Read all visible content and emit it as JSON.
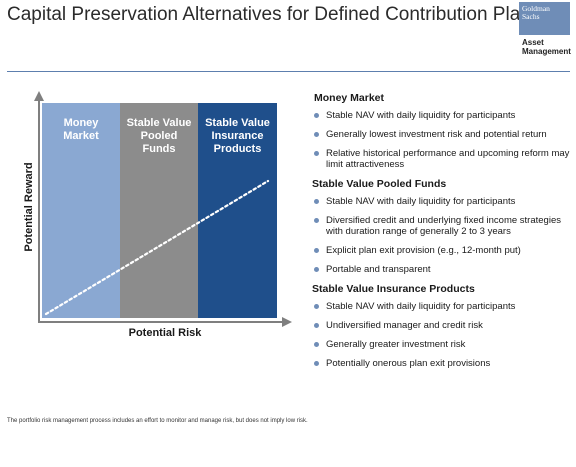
{
  "title": "Capital Preservation Alternatives for Defined Contribution Plans",
  "logo": {
    "line1": "Goldman",
    "line2": "Sachs",
    "sub1": "Asset",
    "sub2": "Management"
  },
  "chart": {
    "bands": [
      {
        "lines": [
          "Money",
          "Market"
        ]
      },
      {
        "lines": [
          "Stable Value",
          "Pooled",
          "Funds"
        ]
      },
      {
        "lines": [
          "Stable Value",
          "Insurance",
          "Products"
        ]
      }
    ],
    "ylabel": "Potential Reward",
    "xlabel": "Potential Risk"
  },
  "sections": [
    {
      "title": "Money Market",
      "bullets": [
        "Stable NAV with daily liquidity for participants",
        "Generally lowest investment risk and potential return",
        "Relative historical performance and upcoming reform may limit attractiveness"
      ]
    },
    {
      "title": "Stable Value Pooled Funds",
      "bullets": [
        "Stable NAV with daily liquidity for participants",
        "Diversified credit and underlying fixed income strategies with duration range of generally 2 to 3 years",
        "Explicit plan exit provision (e.g., 12-month put)",
        "Portable and transparent"
      ]
    },
    {
      "title": "Stable Value Insurance Products",
      "bullets": [
        "Stable NAV with daily liquidity for participants",
        "Undiversified manager and credit risk",
        "Generally greater investment risk",
        "Potentially onerous plan exit provisions"
      ]
    }
  ],
  "footnote": "The portfolio risk management process includes an effort to monitor and manage risk, but does not imply low risk.",
  "colors": {
    "money_market": "#8aa8d2",
    "pooled_funds": "#8c8c8c",
    "insurance_products": "#1f4f8b",
    "accent": "#6f8db7"
  }
}
